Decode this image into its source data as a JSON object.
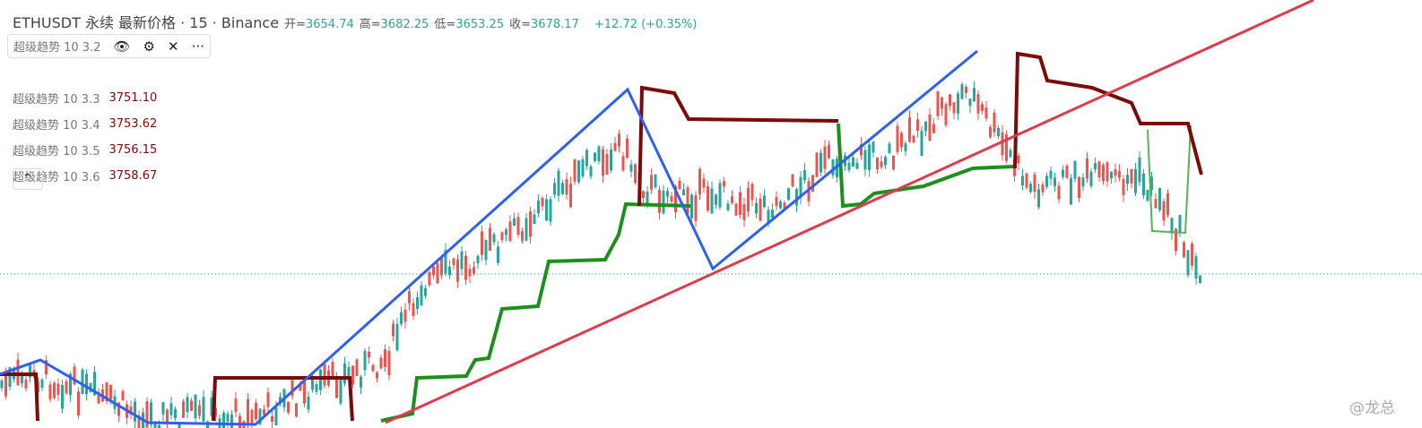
{
  "header": {
    "title": "ETHUSDT 永续 最新价格 · 15 · Binance",
    "ohlc": [
      {
        "label": "开=",
        "value": "3654.74"
      },
      {
        "label": "高=",
        "value": "3682.25"
      },
      {
        "label": "低=",
        "value": "3653.25"
      },
      {
        "label": "收=",
        "value": "3678.17"
      }
    ],
    "change": "+12.72 (+0.35%)"
  },
  "legend": [
    {
      "name": "超级趋势 10 3.2"
    },
    {
      "name": "超级趋势 10 3.3",
      "value": "3751.10"
    },
    {
      "name": "超级趋势 10 3.4",
      "value": "3753.62"
    },
    {
      "name": "超级趋势 10 3.5",
      "value": "3756.15"
    },
    {
      "name": "超级趋势 10 3.6",
      "value": "3758.67"
    }
  ],
  "watermark": "@龙总"
}
